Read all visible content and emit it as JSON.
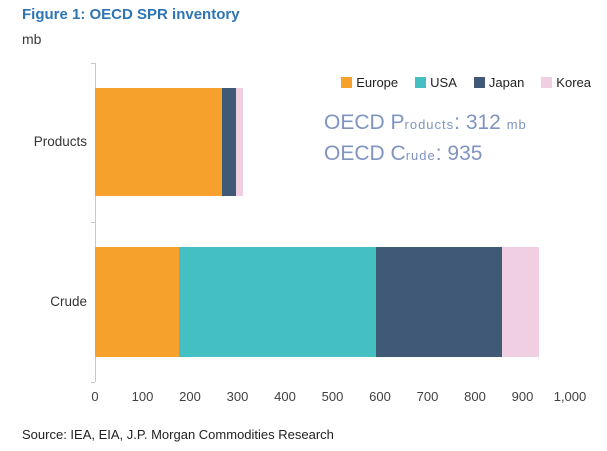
{
  "header": {
    "title": "Figure 1: OECD SPR inventory",
    "unit": "mb"
  },
  "chart_data": {
    "type": "bar",
    "orientation": "horizontal",
    "stacked": true,
    "title": "Figure 1: OECD SPR inventory",
    "unit": "mb",
    "categories": [
      "Products",
      "Crude"
    ],
    "series": [
      {
        "name": "Europe",
        "color": "#F5A12C",
        "values": [
          268,
          176
        ]
      },
      {
        "name": "USA",
        "color": "#44C0C2",
        "values": [
          0,
          415
        ]
      },
      {
        "name": "Japan",
        "color": "#3F5977",
        "values": [
          28,
          265
        ]
      },
      {
        "name": "Korea",
        "color": "#F0CFE3",
        "values": [
          16,
          79
        ]
      }
    ],
    "totals": {
      "Products": 312,
      "Crude": 935
    },
    "x_ticks": [
      "0",
      "100",
      "200",
      "300",
      "400",
      "500",
      "600",
      "700",
      "800",
      "900",
      "1,000"
    ],
    "xlim": [
      0,
      1000
    ],
    "grid": false,
    "legend_position": "top-right"
  },
  "annotation": {
    "color": "#8094C2",
    "lines": [
      {
        "text": "OECD Products: 312 mb",
        "parts": [
          "OECD P",
          "roducts",
          ": 312 ",
          "mb"
        ]
      },
      {
        "text": "OECD Crude: 935",
        "parts": [
          "OECD C",
          "rude",
          ": 935"
        ]
      }
    ]
  },
  "footer": {
    "source": "Source: IEA, EIA, J.P. Morgan Commodities Research"
  }
}
